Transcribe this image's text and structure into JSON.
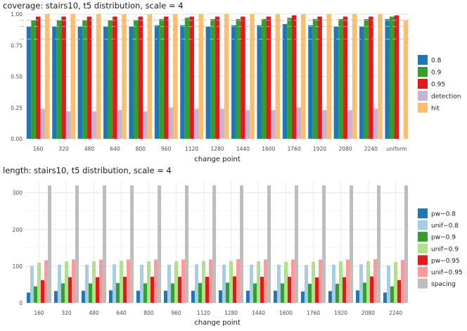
{
  "chart_data": [
    {
      "type": "bar",
      "title": "coverage: stairs10, t5 distribution, scale = 4",
      "xlabel": "change point",
      "ylabel": "",
      "ylim": [
        0,
        1.0
      ],
      "yticks": [
        "0.00",
        "0.25",
        "0.50",
        "0.75",
        "1.00"
      ],
      "ytick_values": [
        0,
        0.25,
        0.5,
        0.75,
        1.0
      ],
      "reference_lines": [
        0.8,
        0.9,
        0.95
      ],
      "grid": true,
      "legend_position": "right",
      "categories": [
        "160",
        "320",
        "480",
        "640",
        "800",
        "960",
        "1120",
        "1280",
        "1440",
        "1600",
        "1760",
        "1920",
        "2080",
        "2240",
        "uniform"
      ],
      "series": [
        {
          "name": "0.8",
          "color": "#1f78b4",
          "values": [
            0.9,
            0.9,
            0.9,
            0.9,
            0.9,
            0.91,
            0.91,
            0.9,
            0.91,
            0.91,
            0.92,
            0.91,
            0.9,
            0.9,
            0.96
          ]
        },
        {
          "name": "0.9",
          "color": "#33a02c",
          "values": [
            0.95,
            0.95,
            0.95,
            0.95,
            0.95,
            0.96,
            0.97,
            0.96,
            0.96,
            0.96,
            0.97,
            0.96,
            0.96,
            0.96,
            0.98
          ]
        },
        {
          "name": "0.95",
          "color": "#e31a1c",
          "values": [
            0.98,
            0.98,
            0.98,
            0.98,
            0.98,
            0.98,
            0.98,
            0.98,
            0.98,
            0.98,
            0.99,
            0.98,
            0.98,
            0.98,
            0.99
          ]
        },
        {
          "name": "detection",
          "color": "#cab2d6",
          "values": [
            0.24,
            0.22,
            0.22,
            0.23,
            0.22,
            0.25,
            0.24,
            0.24,
            0.23,
            0.23,
            0.25,
            0.23,
            0.23,
            0.24,
            null
          ]
        },
        {
          "name": "hit",
          "color": "#fdbf6f",
          "values": [
            1.0,
            1.0,
            1.0,
            1.0,
            1.0,
            1.0,
            1.0,
            1.0,
            1.0,
            1.0,
            1.0,
            1.0,
            1.0,
            1.0,
            0.95
          ]
        }
      ]
    },
    {
      "type": "bar",
      "title": "length: stairs10, t5 distribution, scale = 4",
      "xlabel": "change point",
      "ylabel": "",
      "ylim": [
        0,
        330
      ],
      "yticks": [
        "0",
        "100",
        "200",
        "300"
      ],
      "ytick_values": [
        0,
        100,
        200,
        300
      ],
      "grid": true,
      "legend_position": "right",
      "categories": [
        "160",
        "320",
        "480",
        "640",
        "800",
        "960",
        "1120",
        "1280",
        "1440",
        "1600",
        "1760",
        "1920",
        "2080",
        "2240"
      ],
      "series": [
        {
          "name": "pw−0.8",
          "color": "#1f78b4",
          "values": [
            28,
            32,
            33,
            34,
            33,
            33,
            33,
            34,
            33,
            33,
            31,
            32,
            34,
            28
          ]
        },
        {
          "name": "unif−0.8",
          "color": "#a6cee3",
          "values": [
            101,
            104,
            104,
            105,
            104,
            104,
            105,
            104,
            104,
            104,
            103,
            104,
            105,
            102
          ]
        },
        {
          "name": "pw−0.9",
          "color": "#33a02c",
          "values": [
            45,
            53,
            53,
            54,
            53,
            53,
            54,
            55,
            53,
            53,
            52,
            52,
            55,
            45
          ]
        },
        {
          "name": "unif−0.9",
          "color": "#b2df8a",
          "values": [
            110,
            113,
            113,
            114,
            113,
            113,
            114,
            114,
            113,
            112,
            112,
            113,
            114,
            111
          ]
        },
        {
          "name": "pw−0.95",
          "color": "#e31a1c",
          "values": [
            62,
            70,
            70,
            71,
            71,
            71,
            71,
            72,
            71,
            71,
            69,
            70,
            72,
            62
          ]
        },
        {
          "name": "unif−0.95",
          "color": "#fb9a99",
          "values": [
            116,
            118,
            118,
            118,
            118,
            118,
            118,
            119,
            118,
            118,
            118,
            118,
            119,
            117
          ]
        },
        {
          "name": "spacing",
          "color": "#bdbdbd",
          "values": [
            320,
            320,
            320,
            320,
            320,
            320,
            320,
            320,
            320,
            320,
            320,
            320,
            320,
            320
          ]
        }
      ]
    }
  ]
}
